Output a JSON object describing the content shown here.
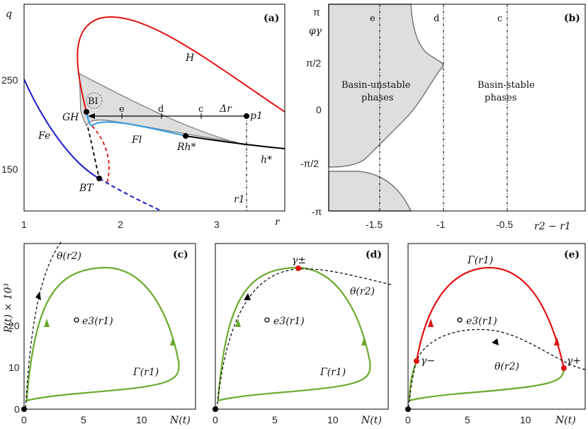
{
  "figure": {
    "panel_a": {
      "tag": "(a)",
      "xlabel": "r",
      "ylabel": "q",
      "xticks": [
        "1",
        "2",
        "3"
      ],
      "yticks": [
        "150",
        "250"
      ],
      "curve_labels": {
        "H": "H",
        "Fe": "Fe",
        "Fl": "Fl",
        "GH": "GH",
        "BT": "BT",
        "Rh": "Rh*",
        "hstar": "h*",
        "BI": "BI",
        "delta": "Δr",
        "p1": "p1",
        "r1": "r1"
      },
      "path_marks": [
        "e",
        "d",
        "c"
      ],
      "colors": {
        "H": "#e01010",
        "Fe": "#1a1acc",
        "Fl": "#2e9be6",
        "region": "#dedede"
      }
    },
    "panel_b": {
      "tag": "(b)",
      "ylabel": "φγ",
      "xlabel": "r2 − r1",
      "xticks": [
        "-1.5",
        "-1",
        "-0.5"
      ],
      "yticks": [
        "π",
        "π/2",
        "0",
        "-π/2",
        "-π"
      ],
      "column_marks": [
        "e",
        "d",
        "c"
      ],
      "unstable_label": [
        "Basin-unstable",
        "phases"
      ],
      "stable_label": [
        "Basin-stable",
        "phases"
      ]
    },
    "panel_c": {
      "tag": "(c)",
      "ylabel": "P(t) × 10³",
      "xlabel": "N(t)",
      "yticks": [
        "0",
        "10",
        "20"
      ],
      "xticks": [
        "0",
        "5",
        "10"
      ],
      "labels": {
        "theta": "θ(r2)",
        "gamma": "Γ(r1)",
        "e3": "e3(r1)"
      }
    },
    "panel_d": {
      "tag": "(d)",
      "xlabel": "N(t)",
      "xticks": [
        "0",
        "5",
        "10"
      ],
      "labels": {
        "theta": "θ(r2)",
        "gamma": "Γ(r1)",
        "e3": "e3(r1)",
        "gpm": "γ±"
      }
    },
    "panel_e": {
      "tag": "(e)",
      "xlabel": "N(t)",
      "xticks": [
        "0",
        "5",
        "10"
      ],
      "labels": {
        "theta": "θ(r2)",
        "gamma": "Γ(r1)",
        "e3": "e3(r1)",
        "gminus": "γ−",
        "gplus": "γ+"
      }
    },
    "colors": {
      "orbit": "#6aaa2c",
      "unstable_arc": "#e01010",
      "marker": "#e01010"
    }
  }
}
